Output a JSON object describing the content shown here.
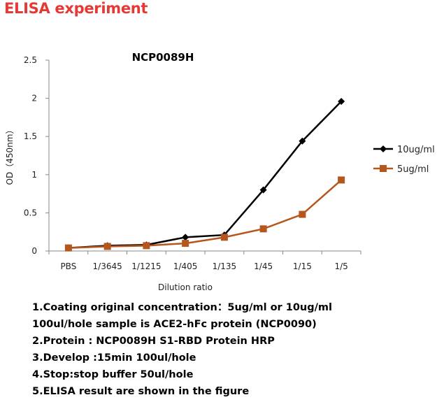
{
  "header": {
    "title": "ELISA experiment",
    "title_color": "#e53935"
  },
  "chart_data": {
    "type": "line",
    "title": "NCP0089H",
    "xlabel": "Dilution ratio",
    "ylabel": "OD（450nm）",
    "categories": [
      "PBS",
      "1/3645",
      "1/1215",
      "1/405",
      "1/135",
      "1/45",
      "1/15",
      "1/5"
    ],
    "ylim": [
      0,
      2.5
    ],
    "yticks": [
      "0",
      "0.5",
      "1",
      "1.5",
      "2",
      "2.5"
    ],
    "grid": false,
    "legend_position": "right",
    "series": [
      {
        "name": "10ug/ml",
        "color": "#000000",
        "marker": "diamond",
        "values": [
          0.04,
          0.07,
          0.08,
          0.18,
          0.21,
          0.8,
          1.44,
          1.96
        ]
      },
      {
        "name": "5ug/ml",
        "color": "#b5561c",
        "marker": "square",
        "values": [
          0.04,
          0.06,
          0.07,
          0.1,
          0.18,
          0.29,
          0.48,
          0.93
        ]
      }
    ]
  },
  "notes": [
    "1.Coating original concentration：5ug/ml or 10ug/ml",
    "100ul/hole sample is ACE2-hFc protein   (NCP0090)",
    "2.Protein : NCP0089H S1-RBD Protein HRP",
    "3.Develop :15min  100ul/hole",
    "4.Stop:stop buffer  50ul/hole",
    "5.ELISA result are shown in the figure"
  ]
}
